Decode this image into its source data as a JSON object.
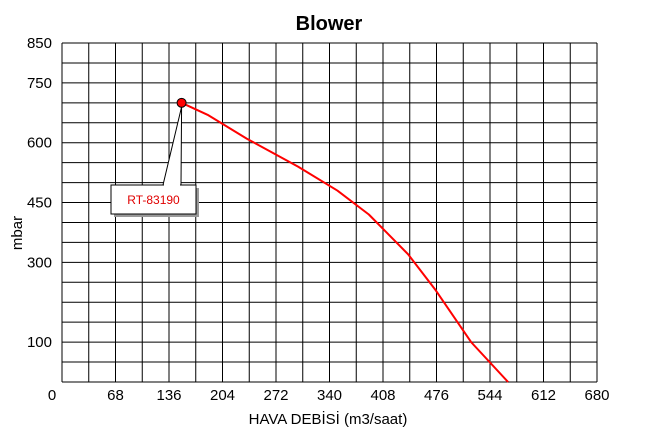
{
  "chart_data": {
    "type": "line",
    "title": "Blower",
    "xlabel": "HAVA DEBİSİ (m3/saat)",
    "ylabel": "mbar",
    "xlim": [
      0,
      680
    ],
    "ylim": [
      0,
      850
    ],
    "x_tick_labels": [
      "0",
      "68",
      "136",
      "204",
      "272",
      "340",
      "408",
      "476",
      "544",
      "612",
      "680"
    ],
    "x_tick_values": [
      0,
      68,
      136,
      204,
      272,
      340,
      408,
      476,
      544,
      612,
      680
    ],
    "y_tick_labels": [
      "100",
      "300",
      "450",
      "600",
      "750",
      "850"
    ],
    "y_tick_values": [
      100,
      300,
      450,
      600,
      750,
      850
    ],
    "grid": true,
    "series": [
      {
        "name": "RT-83190",
        "color": "#ff0000",
        "x": [
          152,
          185,
          235,
          300,
          350,
          390,
          410,
          440,
          475,
          520,
          567
        ],
        "y": [
          700,
          670,
          610,
          540,
          480,
          420,
          380,
          320,
          230,
          100,
          0
        ]
      }
    ],
    "annotations": [
      {
        "text": "RT-83190",
        "x": 152,
        "y": 700,
        "color": "#e00000"
      }
    ]
  }
}
